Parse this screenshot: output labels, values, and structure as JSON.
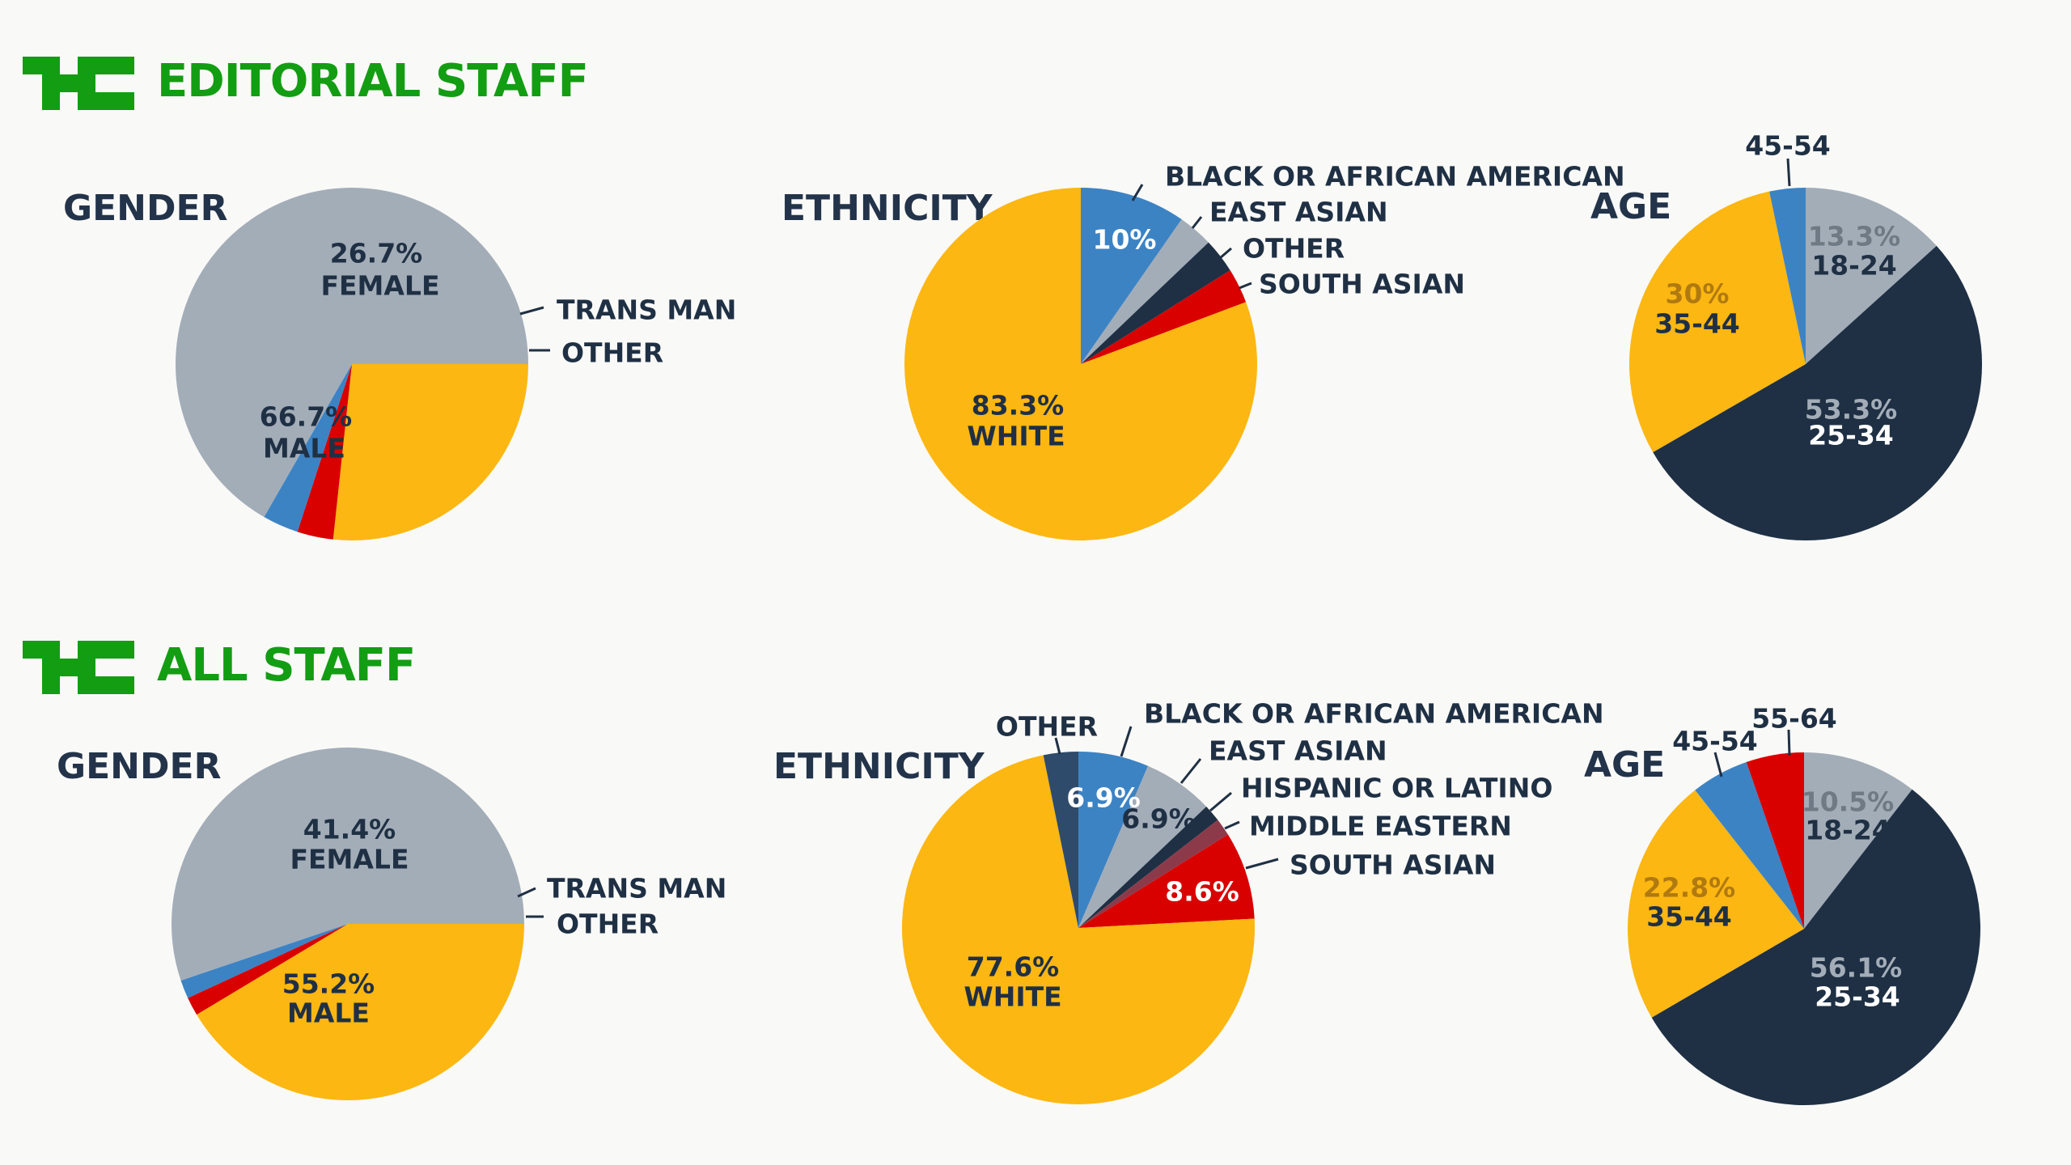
{
  "colors": {
    "accent": "#139d13",
    "yellow": "#fcb712",
    "gray": "#a3adb8",
    "red": "#d90000",
    "blue": "#3c83c4",
    "navy": "#1f3044",
    "text": "#22334a"
  },
  "sections": [
    {
      "title": "EDITORIAL STAFF"
    },
    {
      "title": "ALL STAFF"
    }
  ],
  "chart_data": [
    {
      "type": "pie",
      "title": "GENDER",
      "section": "EDITORIAL STAFF",
      "categories": [
        "FEMALE",
        "TRANS MAN",
        "OTHER",
        "MALE"
      ],
      "values": [
        26.7,
        3.3,
        3.3,
        66.7
      ],
      "value_labels": [
        "26.7%",
        "",
        "",
        "66.7%"
      ]
    },
    {
      "type": "pie",
      "title": "ETHNICITY",
      "section": "EDITORIAL STAFF",
      "categories": [
        "BLACK OR AFRICAN AMERICAN",
        "EAST ASIAN",
        "OTHER",
        "SOUTH ASIAN",
        "WHITE"
      ],
      "values": [
        10,
        3.3,
        3.3,
        3.3,
        83.3
      ],
      "value_labels": [
        "10%",
        "",
        "",
        "",
        "83.3%"
      ]
    },
    {
      "type": "pie",
      "title": "AGE",
      "section": "EDITORIAL STAFF",
      "categories": [
        "18-24",
        "25-34",
        "35-44",
        "45-54"
      ],
      "values": [
        13.3,
        53.3,
        30,
        3.3
      ],
      "value_labels": [
        "13.3%",
        "53.3%",
        "30%",
        ""
      ]
    },
    {
      "type": "pie",
      "title": "GENDER",
      "section": "ALL STAFF",
      "categories": [
        "FEMALE",
        "TRANS MAN",
        "OTHER",
        "MALE"
      ],
      "values": [
        41.4,
        1.7,
        1.7,
        55.2
      ],
      "value_labels": [
        "41.4%",
        "",
        "",
        "55.2%"
      ]
    },
    {
      "type": "pie",
      "title": "ETHNICITY",
      "section": "ALL STAFF",
      "categories": [
        "BLACK OR AFRICAN AMERICAN",
        "EAST ASIAN",
        "HISPANIC OR LATINO",
        "MIDDLE EASTERN",
        "SOUTH ASIAN",
        "WHITE",
        "OTHER"
      ],
      "values": [
        6.9,
        6.9,
        1.7,
        1.7,
        8.6,
        77.6,
        3.4
      ],
      "value_labels": [
        "6.9%",
        "6.9%",
        "",
        "",
        "8.6%",
        "77.6%",
        ""
      ]
    },
    {
      "type": "pie",
      "title": "AGE",
      "section": "ALL STAFF",
      "categories": [
        "18-24",
        "25-34",
        "35-44",
        "45-54",
        "55-64"
      ],
      "values": [
        10.5,
        56.1,
        22.8,
        5.3,
        5.3
      ],
      "value_labels": [
        "10.5%",
        "56.1%",
        "22.8%",
        "",
        ""
      ]
    }
  ]
}
